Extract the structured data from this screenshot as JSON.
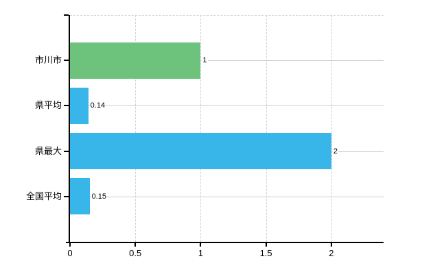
{
  "chart_data": {
    "type": "bar",
    "orientation": "horizontal",
    "title": "",
    "xlabel": "",
    "ylabel": "",
    "categories": [
      "市川市",
      "県平均",
      "県最大",
      "全国平均"
    ],
    "values": [
      1,
      0.14,
      2,
      0.15
    ],
    "value_labels": [
      "1",
      "0.14",
      "2",
      "0.15"
    ],
    "bar_colors": [
      "#6dc37c",
      "#38b5e9",
      "#38b5e9",
      "#38b5e9"
    ],
    "x_ticks": [
      0,
      0.5,
      1,
      1.5,
      2
    ],
    "x_tick_labels": [
      "0",
      "0.5",
      "1",
      "1.5",
      "2"
    ],
    "xlim": [
      0,
      2.4
    ],
    "grid": true,
    "legend": false
  },
  "colors": {
    "background": "#ffffff",
    "axis": "#000000",
    "grid_solid": "#cccccc",
    "grid_dashed": "#d4d4d4",
    "text": "#000000",
    "bar_highlight": "#6dc37c",
    "bar_default": "#38b5e9"
  }
}
